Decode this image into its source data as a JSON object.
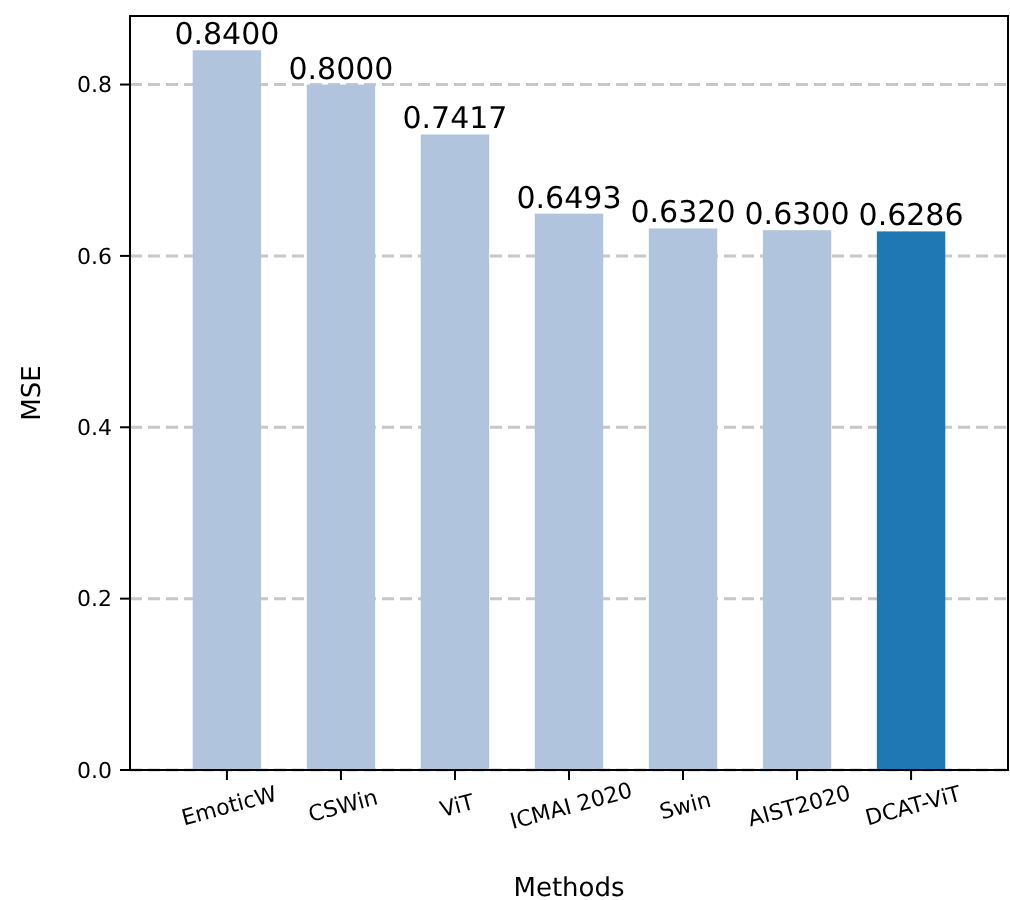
{
  "chart_data": {
    "type": "bar",
    "xlabel": "Methods",
    "ylabel": "MSE",
    "categories": [
      "EmoticW",
      "CSWin",
      "ViT",
      "ICMAI 2020",
      "Swin",
      "AIST2020",
      "DCAT-ViT"
    ],
    "values": [
      0.84,
      0.8,
      0.7417,
      0.6493,
      0.632,
      0.63,
      0.6286
    ],
    "value_labels": [
      "0.8400",
      "0.8000",
      "0.7417",
      "0.6493",
      "0.6320",
      "0.6300",
      "0.6286"
    ],
    "colors": [
      "#b0c4de",
      "#b0c4de",
      "#b0c4de",
      "#b0c4de",
      "#b0c4de",
      "#b0c4de",
      "#1f77b4"
    ],
    "ylim": [
      0,
      0.88
    ],
    "yticks": [
      {
        "value": 0,
        "label": "0.0"
      },
      {
        "value": 0.2,
        "label": "0.2"
      },
      {
        "value": 0.4,
        "label": "0.4"
      },
      {
        "value": 0.6,
        "label": "0.6"
      },
      {
        "value": 0.8,
        "label": "0.8"
      }
    ],
    "grid": "y"
  }
}
